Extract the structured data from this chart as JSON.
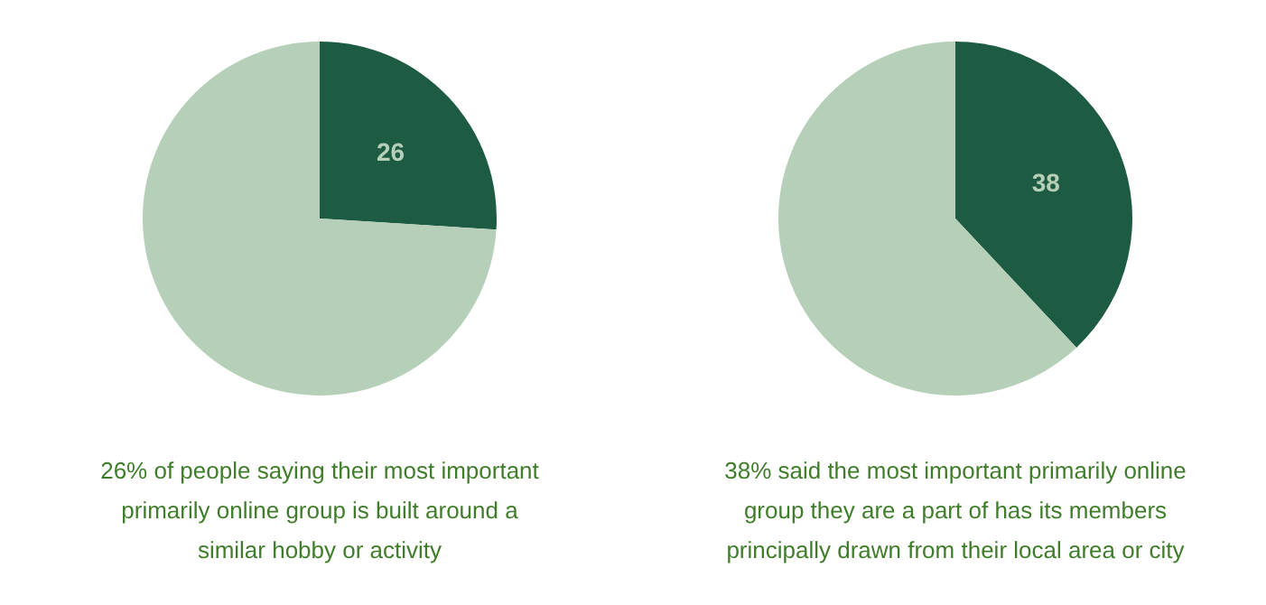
{
  "chart_data": [
    {
      "type": "pie",
      "categories": [
        null,
        null
      ],
      "values": [
        26,
        74
      ],
      "colors": [
        "#1e5b43",
        "#b6cfb8"
      ],
      "value_labels": [
        "26",
        null
      ],
      "annotations": [
        "26% of people saying their most important primarily online group is built around a similar hobby or activity"
      ]
    },
    {
      "type": "pie",
      "categories": [
        null,
        null
      ],
      "values": [
        38,
        62
      ],
      "colors": [
        "#1e5b43",
        "#b6cfb8"
      ],
      "value_labels": [
        "38",
        null
      ],
      "annotations": [
        "38% said the most important primarily online group they are a part of has its members principally drawn from their local area or city"
      ]
    }
  ]
}
